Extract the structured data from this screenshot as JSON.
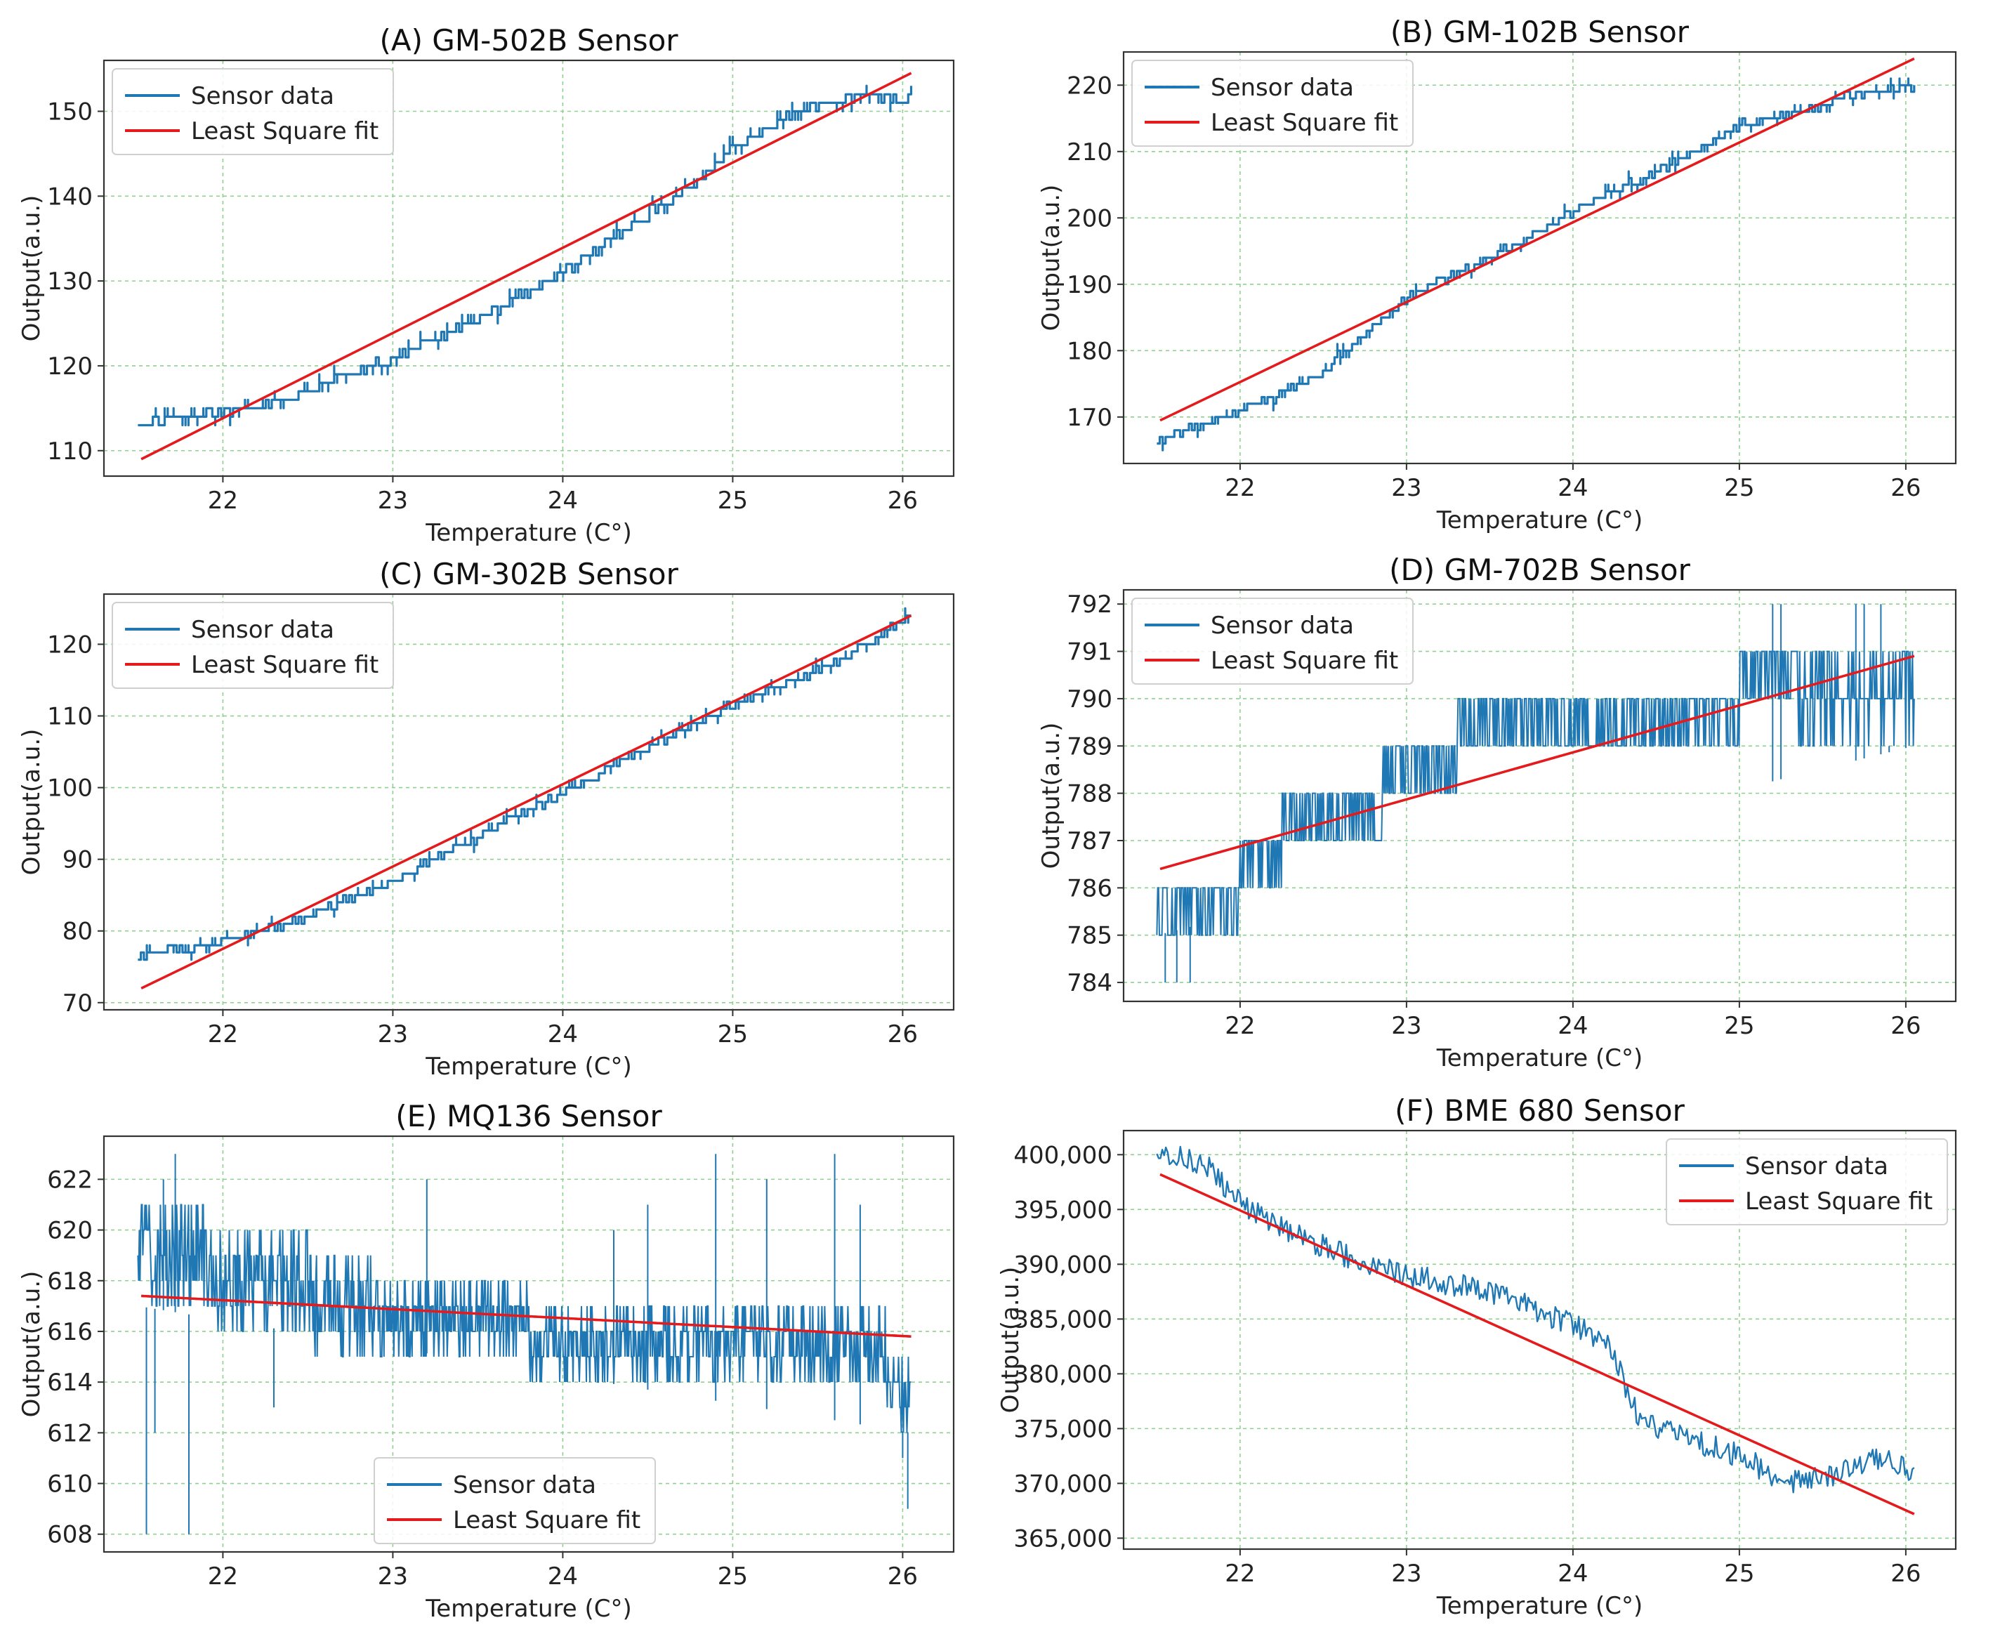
{
  "chart_data": [
    {
      "type": "line",
      "title": "(A) GM-502B Sensor",
      "xlabel": "Temperature (C°)",
      "ylabel": "Output(a.u.)",
      "xlim": [
        21.3,
        26.3
      ],
      "ylim": [
        107,
        156
      ],
      "xticks": [
        22,
        23,
        24,
        25,
        26
      ],
      "yticks": [
        110,
        120,
        130,
        140,
        150
      ],
      "grid": true,
      "legend_position": "top-left",
      "series": [
        {
          "name": "Sensor data",
          "color": "#1f77b4",
          "kind": "step",
          "noise": 0.5,
          "samples": 260,
          "x": [
            21.5,
            21.8,
            22.0,
            22.3,
            22.6,
            23.0,
            23.5,
            24.0,
            24.5,
            24.8,
            25.0,
            25.3,
            25.6,
            25.8,
            26.0,
            26.05
          ],
          "y": [
            113.5,
            114.0,
            114.5,
            115.5,
            118.0,
            121.0,
            125.5,
            131.0,
            138.0,
            142.0,
            145.5,
            149.5,
            151.5,
            152.0,
            151.0,
            153.0
          ]
        },
        {
          "name": "Least Square fit",
          "color": "#e41a1c",
          "kind": "line",
          "x": [
            21.52,
            26.05
          ],
          "y": [
            109.0,
            154.5
          ]
        }
      ]
    },
    {
      "type": "line",
      "title": "(B) GM-102B Sensor",
      "xlabel": "Temperature (C°)",
      "ylabel": "Output(a.u.)",
      "xlim": [
        21.3,
        26.3
      ],
      "ylim": [
        163,
        225
      ],
      "xticks": [
        22,
        23,
        24,
        25,
        26
      ],
      "yticks": [
        170,
        180,
        190,
        200,
        210,
        220
      ],
      "grid": true,
      "legend_position": "top-left",
      "series": [
        {
          "name": "Sensor data",
          "color": "#1f77b4",
          "kind": "step",
          "noise": 0.6,
          "samples": 260,
          "x": [
            21.5,
            21.8,
            22.2,
            22.5,
            22.8,
            23.0,
            23.5,
            24.0,
            24.5,
            24.8,
            25.0,
            25.3,
            25.6,
            26.0,
            26.05
          ],
          "y": [
            166.5,
            169.0,
            173.0,
            177.0,
            184.0,
            188.0,
            194.0,
            201.0,
            207.0,
            211.0,
            214.0,
            215.5,
            218.0,
            220.0,
            219.5
          ]
        },
        {
          "name": "Least Square fit",
          "color": "#e41a1c",
          "kind": "line",
          "x": [
            21.52,
            26.05
          ],
          "y": [
            169.5,
            224.0
          ]
        }
      ]
    },
    {
      "type": "line",
      "title": "(C) GM-302B Sensor",
      "xlabel": "Temperature (C°)",
      "ylabel": "Output(a.u.)",
      "xlim": [
        21.3,
        26.3
      ],
      "ylim": [
        69,
        127
      ],
      "xticks": [
        22,
        23,
        24,
        25,
        26
      ],
      "yticks": [
        70,
        80,
        90,
        100,
        110,
        120
      ],
      "grid": true,
      "legend_position": "top-left",
      "series": [
        {
          "name": "Sensor data",
          "color": "#1f77b4",
          "kind": "step",
          "noise": 0.5,
          "samples": 260,
          "x": [
            21.5,
            22.0,
            22.5,
            23.0,
            23.5,
            24.0,
            24.5,
            25.0,
            25.5,
            25.8,
            26.05
          ],
          "y": [
            76.5,
            78.5,
            82.0,
            87.0,
            93.0,
            99.5,
            105.5,
            111.5,
            116.5,
            120.0,
            124.5
          ]
        },
        {
          "name": "Least Square fit",
          "color": "#e41a1c",
          "kind": "line",
          "x": [
            21.52,
            26.05
          ],
          "y": [
            72.0,
            124.0
          ]
        }
      ]
    },
    {
      "type": "line",
      "title": "(D) GM-702B Sensor",
      "xlabel": "Temperature (C°)",
      "ylabel": "Output(a.u.)",
      "xlim": [
        21.3,
        26.3
      ],
      "ylim": [
        783.6,
        792.3
      ],
      "xticks": [
        22,
        23,
        24,
        25,
        26
      ],
      "yticks": [
        784,
        785,
        786,
        787,
        788,
        789,
        790,
        791,
        792
      ],
      "grid": true,
      "legend_position": "top-left",
      "series": [
        {
          "name": "Sensor data",
          "color": "#1f77b4",
          "kind": "toggle",
          "samples": 900,
          "segments": [
            {
              "x0": 21.5,
              "x1": 22.0,
              "levels": [
                785,
                786
              ]
            },
            {
              "x0": 22.0,
              "x1": 22.25,
              "levels": [
                786,
                787
              ]
            },
            {
              "x0": 22.25,
              "x1": 22.85,
              "levels": [
                787,
                788
              ]
            },
            {
              "x0": 22.85,
              "x1": 23.3,
              "levels": [
                788,
                789
              ]
            },
            {
              "x0": 23.3,
              "x1": 24.2,
              "levels": [
                789,
                790
              ]
            },
            {
              "x0": 24.2,
              "x1": 25.0,
              "levels": [
                789,
                790
              ]
            },
            {
              "x0": 25.0,
              "x1": 25.35,
              "levels": [
                790,
                791
              ]
            },
            {
              "x0": 25.35,
              "x1": 26.05,
              "levels": [
                789,
                791
              ]
            }
          ],
          "outliers": [
            [
              21.55,
              784
            ],
            [
              21.62,
              784
            ],
            [
              21.7,
              784
            ],
            [
              25.2,
              792
            ],
            [
              25.25,
              792
            ],
            [
              25.7,
              792
            ],
            [
              25.75,
              792
            ],
            [
              25.85,
              792
            ],
            [
              25.9,
              789
            ],
            [
              26.0,
              789
            ]
          ]
        },
        {
          "name": "Least Square fit",
          "color": "#e41a1c",
          "kind": "line",
          "x": [
            21.52,
            26.05
          ],
          "y": [
            786.4,
            790.9
          ]
        }
      ]
    },
    {
      "type": "line",
      "title": "(E) MQ136 Sensor",
      "xlabel": "Temperature (C°)",
      "ylabel": "Output(a.u.)",
      "xlim": [
        21.3,
        26.3
      ],
      "ylim": [
        607.3,
        623.7
      ],
      "xticks": [
        22,
        23,
        24,
        25,
        26
      ],
      "yticks": [
        608,
        610,
        612,
        614,
        616,
        618,
        620,
        622
      ],
      "grid": true,
      "legend_position": "bottom-center",
      "series": [
        {
          "name": "Sensor data",
          "color": "#1f77b4",
          "kind": "toggle",
          "samples": 1100,
          "segments": [
            {
              "x0": 21.5,
              "x1": 21.9,
              "levels": [
                617,
                621
              ]
            },
            {
              "x0": 21.9,
              "x1": 22.5,
              "levels": [
                616,
                620
              ]
            },
            {
              "x0": 22.5,
              "x1": 22.9,
              "levels": [
                615,
                619
              ]
            },
            {
              "x0": 22.9,
              "x1": 23.8,
              "levels": [
                615,
                618
              ]
            },
            {
              "x0": 23.8,
              "x1": 25.9,
              "levels": [
                614,
                617
              ]
            },
            {
              "x0": 25.9,
              "x1": 26.05,
              "levels": [
                612,
                615
              ]
            }
          ],
          "outliers": [
            [
              21.55,
              608
            ],
            [
              21.6,
              612
            ],
            [
              21.65,
              622
            ],
            [
              21.72,
              623
            ],
            [
              21.8,
              608
            ],
            [
              22.3,
              613
            ],
            [
              23.2,
              622
            ],
            [
              24.3,
              620
            ],
            [
              24.5,
              621
            ],
            [
              24.9,
              623
            ],
            [
              25.2,
              622
            ],
            [
              25.6,
              623
            ],
            [
              25.75,
              621
            ],
            [
              26.0,
              611
            ],
            [
              26.03,
              609
            ]
          ]
        },
        {
          "name": "Least Square fit",
          "color": "#e41a1c",
          "kind": "line",
          "x": [
            21.52,
            26.05
          ],
          "y": [
            617.4,
            615.8
          ]
        }
      ]
    },
    {
      "type": "line",
      "title": "(F) BME 680 Sensor",
      "xlabel": "Temperature (C°)",
      "ylabel": "Output(a.u.)",
      "xlim": [
        21.3,
        26.3
      ],
      "ylim": [
        364000,
        402200
      ],
      "xticks": [
        22,
        23,
        24,
        25,
        26
      ],
      "yticks": [
        365000,
        370000,
        375000,
        380000,
        385000,
        390000,
        395000,
        400000
      ],
      "ytick_labels": [
        "365,000",
        "370,000",
        "375,000",
        "380,000",
        "385,000",
        "390,000",
        "395,000",
        "400,000"
      ],
      "grid": true,
      "legend_position": "top-right",
      "series": [
        {
          "name": "Sensor data",
          "color": "#1f77b4",
          "kind": "noisy",
          "noise": 1100,
          "samples": 420,
          "x": [
            21.5,
            21.8,
            22.0,
            22.3,
            22.6,
            23.0,
            23.5,
            24.0,
            24.2,
            24.4,
            24.6,
            25.0,
            25.3,
            25.6,
            25.9,
            26.05
          ],
          "y": [
            400500,
            399000,
            395500,
            393000,
            391000,
            389000,
            387500,
            384500,
            383000,
            376000,
            374500,
            372500,
            370000,
            371000,
            372500,
            370500
          ]
        },
        {
          "name": "Least Square fit",
          "color": "#e41a1c",
          "kind": "line",
          "x": [
            21.52,
            26.05
          ],
          "y": [
            398200,
            367200
          ]
        }
      ]
    }
  ]
}
